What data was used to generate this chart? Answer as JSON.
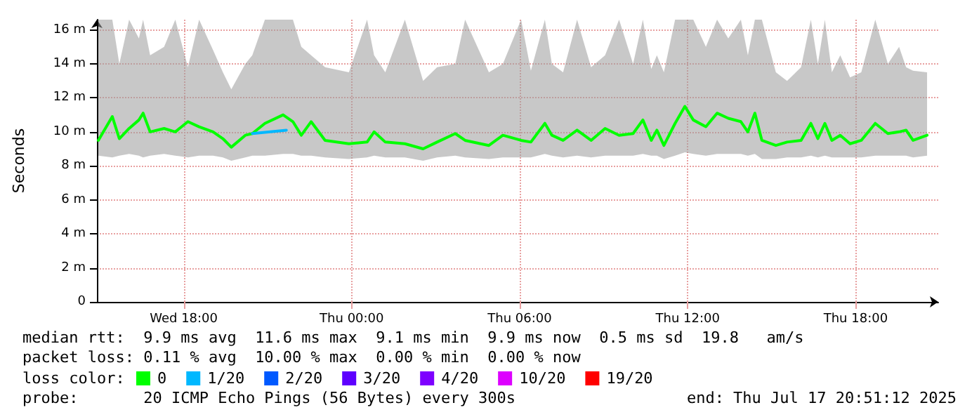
{
  "chart_data": {
    "type": "line",
    "ylabel": "Seconds",
    "legend_title": "loss color:",
    "legend": "bottom",
    "grid": true,
    "xlim": [
      "2025-07-16T14:54",
      "2025-07-17T20:57"
    ],
    "xticks": [
      {
        "value": "2025-07-16T18:00",
        "label": "Wed 18:00"
      },
      {
        "value": "2025-07-17T00:00",
        "label": "Thu 00:00"
      },
      {
        "value": "2025-07-17T06:00",
        "label": "Thu 06:00"
      },
      {
        "value": "2025-07-17T12:00",
        "label": "Thu 12:00"
      },
      {
        "value": "2025-07-17T18:00",
        "label": "Thu 18:00"
      }
    ],
    "ylim": [
      0,
      16.6
    ],
    "yticks": [
      0,
      {
        "value": 2,
        "label": "2 m"
      },
      {
        "value": 4,
        "label": "4 m"
      },
      {
        "value": 6,
        "label": "6 m"
      },
      {
        "value": 8,
        "label": "8 m"
      },
      {
        "value": 10,
        "label": "10 m"
      },
      {
        "value": 12,
        "label": "12 m"
      },
      {
        "value": 14,
        "label": "14 m"
      },
      {
        "value": 16,
        "label": "16 m"
      }
    ],
    "series": [
      {
        "name": "0",
        "color": "#00ff00",
        "x": [
          "2025-07-16T14:57",
          "2025-07-16T15:27",
          "2025-07-16T15:42",
          "2025-07-16T16:03",
          "2025-07-16T16:24",
          "2025-07-16T16:33",
          "2025-07-16T16:48",
          "2025-07-16T17:18",
          "2025-07-16T17:42",
          "2025-07-16T18:09",
          "2025-07-16T18:33",
          "2025-07-16T19:03",
          "2025-07-16T19:24",
          "2025-07-16T19:42",
          "2025-07-16T20:12",
          "2025-07-16T20:27",
          "2025-07-16T20:54",
          "2025-07-16T21:33",
          "2025-07-16T21:54",
          "2025-07-16T22:12",
          "2025-07-16T22:33",
          "2025-07-16T23:03",
          "2025-07-16T23:54",
          "2025-07-17T00:33",
          "2025-07-17T00:48",
          "2025-07-17T01:12",
          "2025-07-17T01:54",
          "2025-07-17T02:33",
          "2025-07-17T03:03",
          "2025-07-17T03:42",
          "2025-07-17T04:03",
          "2025-07-17T04:54",
          "2025-07-17T05:24",
          "2025-07-17T06:03",
          "2025-07-17T06:24",
          "2025-07-17T06:54",
          "2025-07-17T07:09",
          "2025-07-17T07:33",
          "2025-07-17T08:03",
          "2025-07-17T08:33",
          "2025-07-17T09:03",
          "2025-07-17T09:33",
          "2025-07-17T10:03",
          "2025-07-17T10:24",
          "2025-07-17T10:42",
          "2025-07-17T10:54",
          "2025-07-17T11:09",
          "2025-07-17T11:33",
          "2025-07-17T11:54",
          "2025-07-17T12:12",
          "2025-07-17T12:39",
          "2025-07-17T13:03",
          "2025-07-17T13:27",
          "2025-07-17T13:54",
          "2025-07-17T14:09",
          "2025-07-17T14:24",
          "2025-07-17T14:39",
          "2025-07-17T15:09",
          "2025-07-17T15:33",
          "2025-07-17T16:03",
          "2025-07-17T16:24",
          "2025-07-17T16:39",
          "2025-07-17T16:54",
          "2025-07-17T17:09",
          "2025-07-17T17:27",
          "2025-07-17T17:48",
          "2025-07-17T18:12",
          "2025-07-17T18:42",
          "2025-07-17T19:09",
          "2025-07-17T19:33",
          "2025-07-17T19:48",
          "2025-07-17T20:03",
          "2025-07-17T20:33"
        ],
        "values": [
          9.5,
          10.9,
          9.6,
          10.2,
          10.7,
          11.1,
          10,
          10.2,
          10,
          10.6,
          10.3,
          10,
          9.6,
          9.1,
          9.8,
          9.9,
          10.5,
          11,
          10.6,
          9.8,
          10.6,
          9.5,
          9.3,
          9.4,
          10,
          9.4,
          9.3,
          9,
          9.4,
          9.9,
          9.5,
          9.2,
          9.8,
          9.5,
          9.4,
          10.5,
          9.8,
          9.5,
          10.1,
          9.5,
          10.2,
          9.8,
          9.9,
          10.7,
          9.5,
          10.1,
          9.2,
          10.5,
          11.5,
          10.7,
          10.3,
          11.1,
          10.8,
          10.6,
          10,
          11.1,
          9.5,
          9.2,
          9.4,
          9.5,
          10.5,
          9.6,
          10.5,
          9.5,
          9.8,
          9.3,
          9.5,
          10.5,
          9.9,
          10,
          10.1,
          9.5,
          9.8
        ],
        "lower": [
          8.6,
          8.5,
          8.6,
          8.7,
          8.6,
          8.5,
          8.6,
          8.7,
          8.6,
          8.5,
          8.6,
          8.6,
          8.5,
          8.3,
          8.5,
          8.6,
          8.6,
          8.7,
          8.7,
          8.6,
          8.6,
          8.5,
          8.4,
          8.5,
          8.6,
          8.5,
          8.5,
          8.3,
          8.5,
          8.6,
          8.5,
          8.4,
          8.5,
          8.5,
          8.5,
          8.7,
          8.6,
          8.5,
          8.6,
          8.5,
          8.6,
          8.6,
          8.6,
          8.7,
          8.6,
          8.6,
          8.4,
          8.6,
          8.8,
          8.7,
          8.6,
          8.7,
          8.7,
          8.7,
          8.6,
          8.7,
          8.4,
          8.4,
          8.5,
          8.5,
          8.6,
          8.5,
          8.6,
          8.5,
          8.5,
          8.5,
          8.5,
          8.6,
          8.6,
          8.6,
          8.6,
          8.5,
          8.6
        ],
        "upper": [
          16.6,
          16.6,
          14,
          16.6,
          15.5,
          16.6,
          14.5,
          15,
          16.6,
          13.8,
          16.6,
          14.8,
          13.5,
          12.5,
          14,
          14.5,
          16.6,
          16.6,
          16.6,
          15,
          14.5,
          13.8,
          13.5,
          16.6,
          14.5,
          13.5,
          16.6,
          13,
          13.8,
          14,
          16.6,
          13.5,
          14,
          16.6,
          13.6,
          16.6,
          14,
          13.5,
          16.6,
          13.8,
          14.5,
          16.6,
          14,
          16.6,
          13.7,
          14.5,
          13.5,
          16.6,
          16.6,
          16.6,
          15,
          16.6,
          15.5,
          16.6,
          14.5,
          16.6,
          16.6,
          13.5,
          13,
          13.8,
          16.6,
          14,
          16.6,
          13.5,
          14.5,
          13.2,
          13.5,
          16.6,
          14,
          15,
          13.8,
          13.6,
          13.5
        ]
      },
      {
        "name": "1/20",
        "color": "#00b8ff",
        "x": [
          "2025-07-16T20:27",
          "2025-07-16T21:40"
        ],
        "values": [
          9.9,
          10.1
        ]
      },
      {
        "name": "2/20",
        "color": "#0059ff"
      },
      {
        "name": "3/20",
        "color": "#5e00ff"
      },
      {
        "name": "4/20",
        "color": "#7e00ff"
      },
      {
        "name": "10/20",
        "color": "#dd00ff"
      },
      {
        "name": "19/20",
        "color": "#ff0000"
      }
    ],
    "annotations": [
      "median rtt:  9.9 ms avg  11.6 ms max  9.1 ms min  9.9 ms now  0.5 ms sd  19.8   am/s",
      "packet loss: 0.11 % avg  10.00 % max  0.00 % min  0.00 % now",
      "probe:       20 ICMP Echo Pings (56 Bytes) every 300s",
      "end: Thu Jul 17 20:51:12 2025"
    ]
  }
}
